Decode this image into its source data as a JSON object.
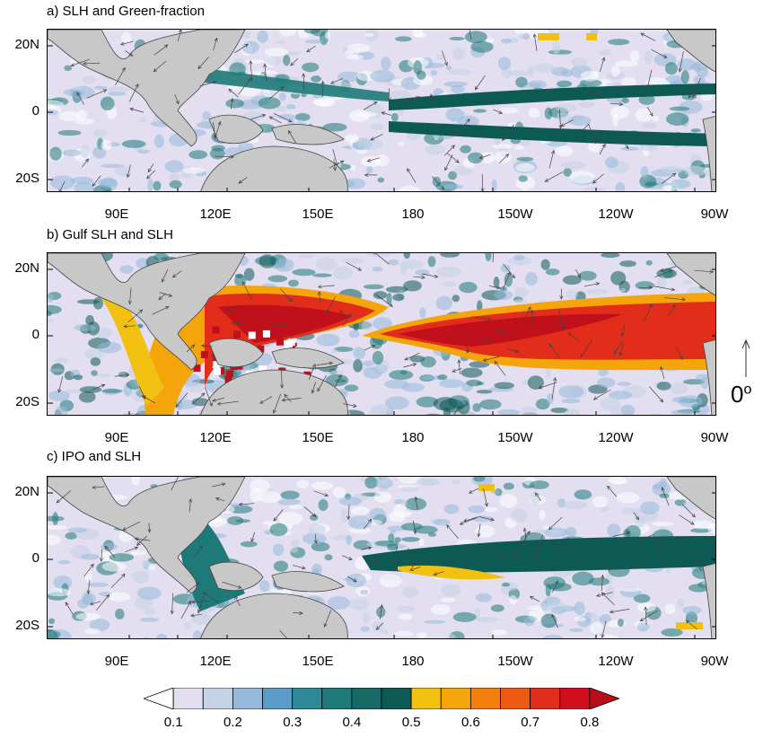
{
  "panels": [
    {
      "title": "a) SLH and Green-fraction"
    },
    {
      "title": "b) Gulf SLH and SLH"
    },
    {
      "title": "c) IPO and SLH"
    }
  ],
  "axes": {
    "y_ticks": [
      "20N",
      "0",
      "20S"
    ],
    "x_ticks": [
      "90E",
      "120E",
      "150E",
      "180",
      "150W",
      "120W",
      "90W"
    ]
  },
  "reference_vector": {
    "label": "0",
    "degree_symbol": "o"
  },
  "colorbar": {
    "levels": [
      "0.1",
      "0.2",
      "0.3",
      "0.4",
      "0.5",
      "0.6",
      "0.7",
      "0.8"
    ],
    "colors": [
      "#ffffff",
      "#e3def0",
      "#c5d3e6",
      "#96b9da",
      "#5b9cc8",
      "#2e8a96",
      "#1e7a78",
      "#156a66",
      "#0d5a55",
      "#f1c010",
      "#f5a50c",
      "#f57f0e",
      "#ee5a12",
      "#e12d1a",
      "#d10e1c",
      "#b80d1a"
    ]
  },
  "colors": {
    "land": "#c8c8c8",
    "ocean_low": "#e3def0",
    "teal": "#1e7a78",
    "dark_teal": "#0d5a55",
    "blue": "#96b9da",
    "yellow": "#f1c010",
    "orange": "#f5a50c",
    "red": "#e12d1a",
    "dark_red": "#c0101c"
  }
}
